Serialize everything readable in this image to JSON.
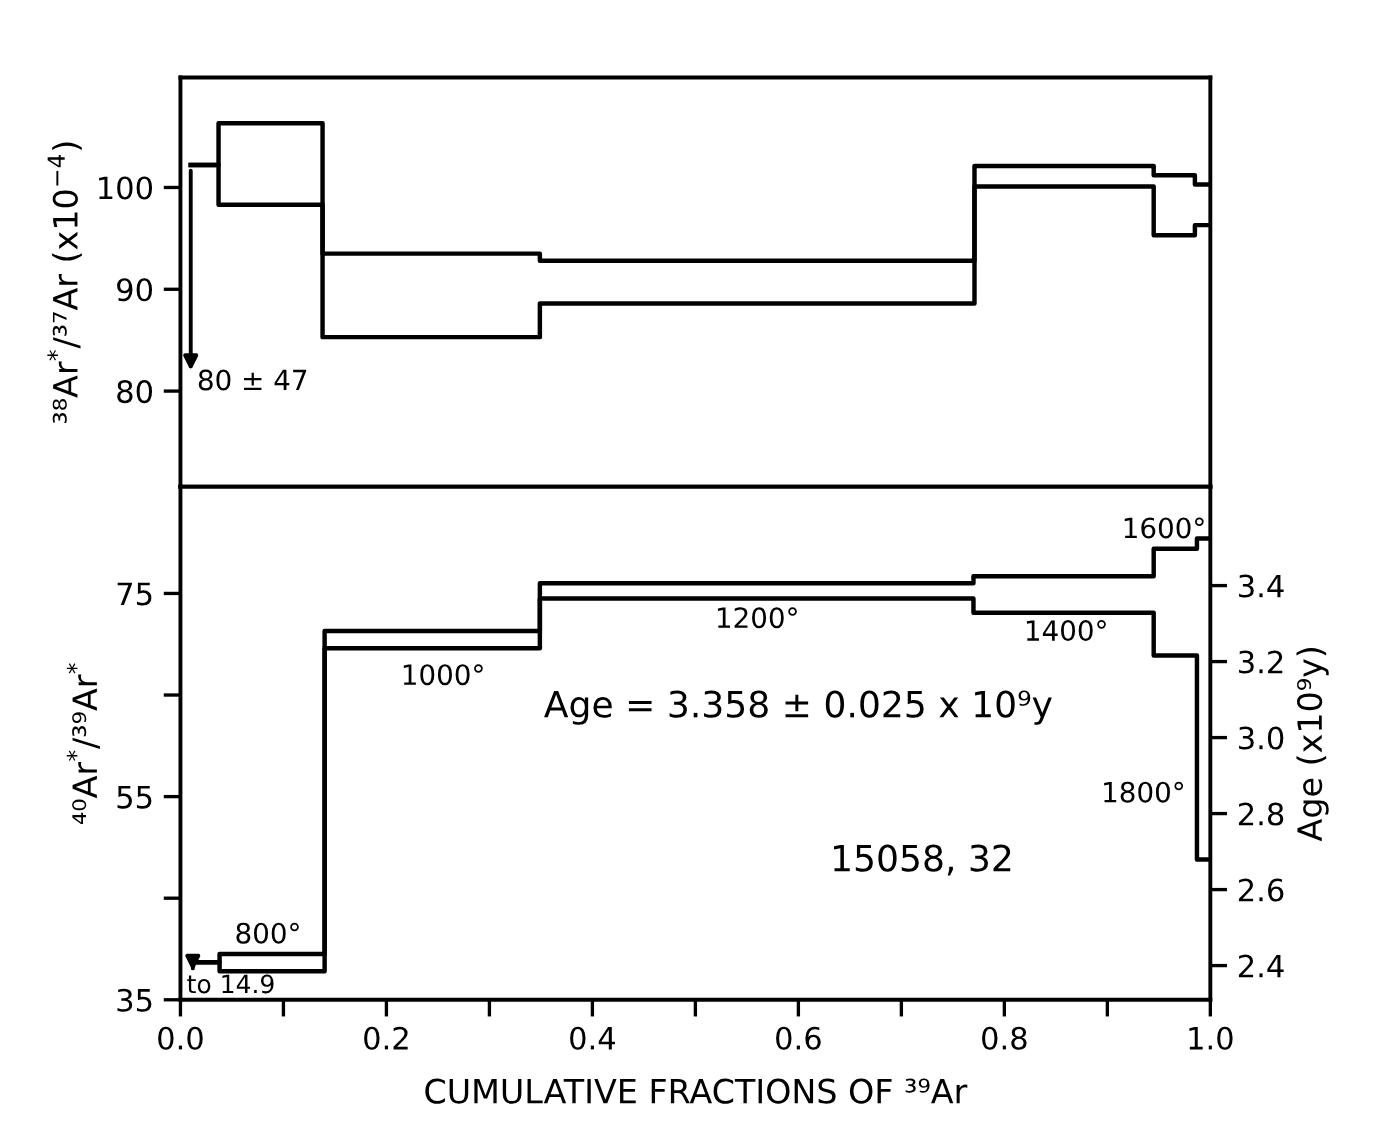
{
  "chart_data": [
    {
      "type": "step",
      "ylabel": "³⁸Ar$^{*}$/³⁷Ar (x10$^{−4}$)",
      "x": [
        0.01,
        0.037,
        0.138,
        0.349,
        0.771,
        0.945,
        0.985,
        1.0
      ],
      "series": [
        {
          "color": "#000000",
          "values": [
            102.2,
            106.3,
            93.5,
            92.8,
            102.1,
            101.2,
            100.3,
            100.3
          ]
        },
        {
          "color": "#000000",
          "values": [
            102.2,
            98.3,
            85.3,
            88.6,
            100.1,
            95.3,
            96.3,
            96.3
          ]
        }
      ],
      "xlim": [
        0,
        1
      ],
      "xticks": [
        {
          "value": 0.1,
          "label": null
        },
        {
          "value": 0.2,
          "label": null
        },
        {
          "value": 0.3,
          "label": null
        },
        {
          "value": 0.4,
          "label": null
        },
        {
          "value": 0.5,
          "label": null
        },
        {
          "value": 0.6,
          "label": null
        },
        {
          "value": 0.7,
          "label": null
        },
        {
          "value": 0.8,
          "label": null
        },
        {
          "value": 0.9,
          "label": null
        }
      ],
      "ylim": [
        70.6,
        110.8
      ],
      "yticks": [
        80,
        90,
        100
      ],
      "tick_labels": "y",
      "annotations": [
        {
          "text": "80 ± 47",
          "x": 0.01,
          "y": 102.2
        }
      ]
    },
    {
      "type": "step",
      "xlabel": "CUMULATIVE FRACTIONS OF ³⁹Ar",
      "ylabel": "⁴⁰Ar$^{*}$/³⁹Ar$^{*}$",
      "y2label": "Age (x10⁹y)",
      "x": [
        0.012,
        0.038,
        0.14,
        0.349,
        0.77,
        0.945,
        0.987,
        1.0
      ],
      "series": [
        {
          "color": "#000000",
          "values": [
            38.7,
            39.5,
            71.3,
            76.0,
            76.7,
            79.4,
            80.4,
            80.4
          ]
        },
        {
          "color": "#000000",
          "values": [
            38.7,
            37.8,
            69.6,
            74.5,
            73.1,
            68.9,
            48.8,
            48.8
          ]
        }
      ],
      "xlim": [
        0,
        1
      ],
      "xticks": [
        {
          "value": 0,
          "label": "0.0"
        },
        {
          "value": 0.1,
          "label": null
        },
        0.2,
        {
          "value": 0.3,
          "label": null
        },
        0.4,
        {
          "value": 0.5,
          "label": null
        },
        0.6,
        {
          "value": 0.7,
          "label": null
        },
        0.8,
        {
          "value": 0.9,
          "label": null
        },
        {
          "value": 1,
          "label": "1.0"
        }
      ],
      "ylim": [
        35,
        85.5
      ],
      "yticks": [
        35,
        {
          "value": 45,
          "label": null
        },
        55,
        {
          "value": 65,
          "label": null
        },
        75
      ],
      "y2lim": [
        2.31,
        3.66
      ],
      "y2ticks": [
        2.4,
        2.6,
        2.8,
        {
          "value": 3,
          "label": "3.0"
        },
        3.2,
        3.4
      ],
      "annotations": [
        {
          "text": "to 14.9",
          "x": 0.012,
          "y": 38.7
        },
        "800°",
        "1000°",
        "1200°",
        "1400°",
        "1600°",
        "1800°",
        "Age = 3.358 ± 0.025 x 10⁹y",
        "15058, 32"
      ]
    }
  ]
}
